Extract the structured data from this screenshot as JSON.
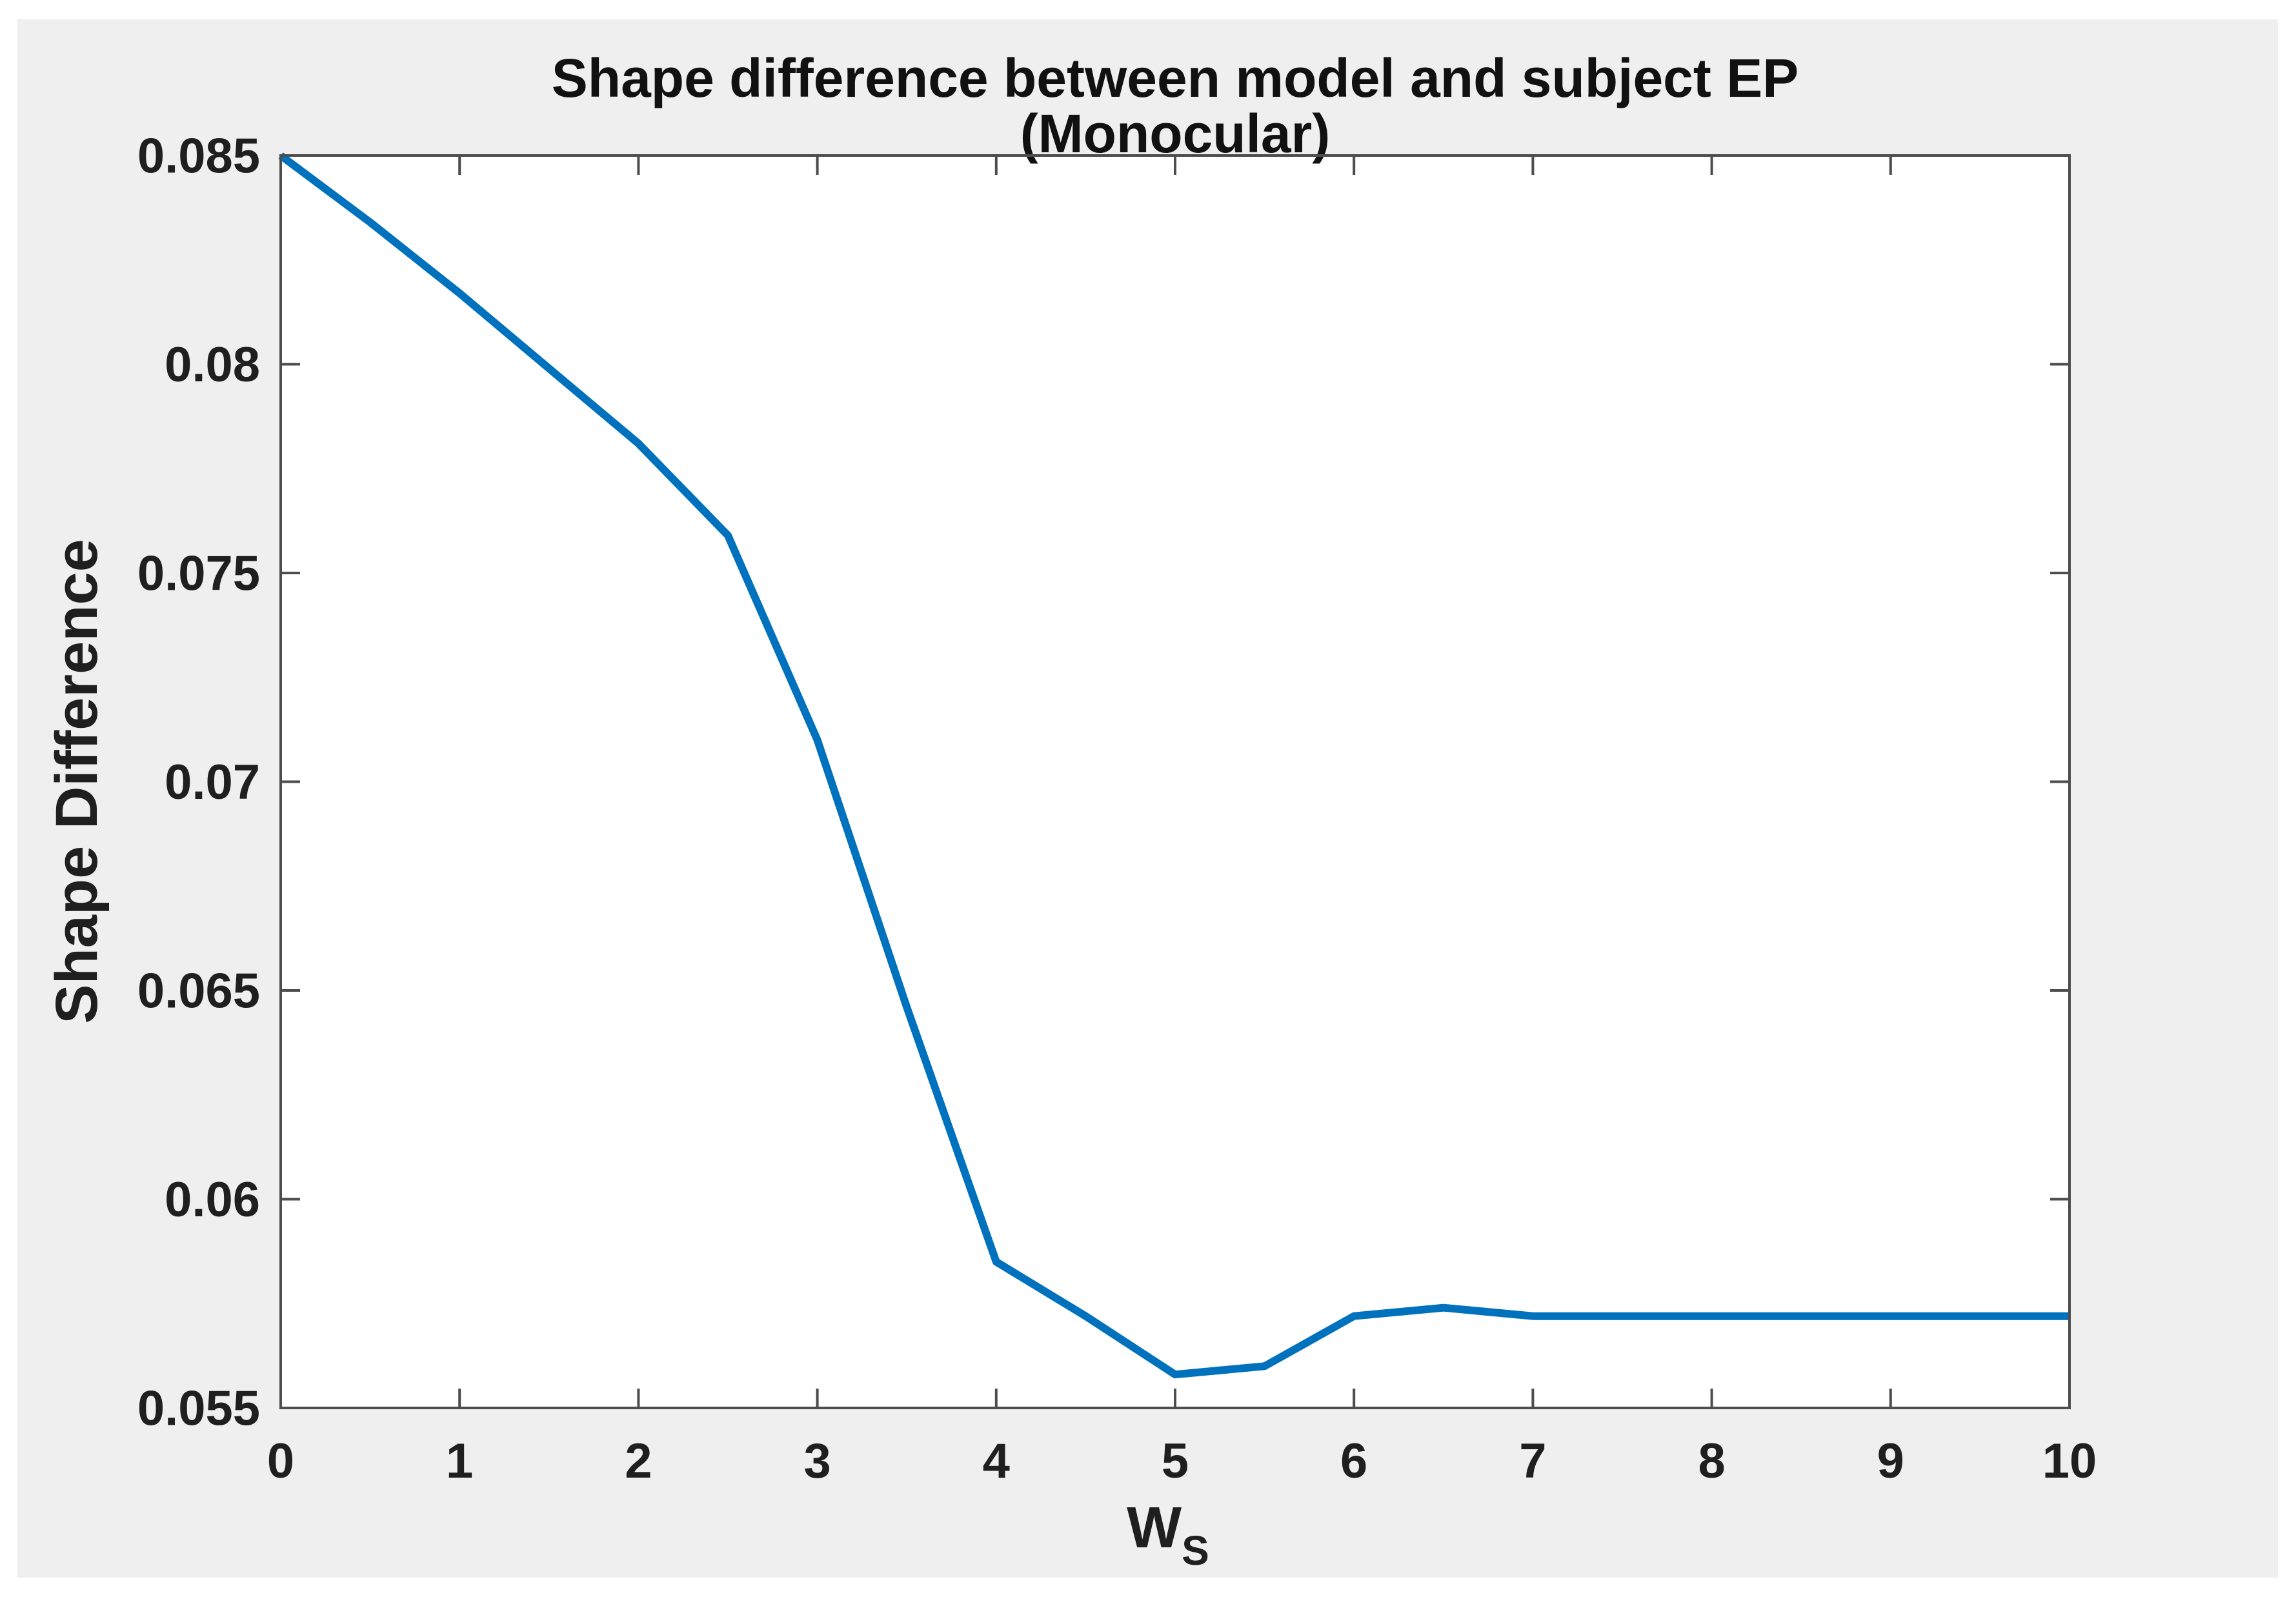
{
  "figure": {
    "title_line1": "Shape difference between model and subject EP",
    "title_line2": "(Monocular)",
    "background_color": "#efefef",
    "plot_background_color": "#ffffff",
    "axis_color": "#4d4d4d"
  },
  "chart_data": {
    "type": "line",
    "title": "Shape difference between model and subject EP (Monocular)",
    "xlabel_base": "W",
    "xlabel_subscript": "S",
    "ylabel": "Shape Difference",
    "xlim": [
      0,
      10
    ],
    "ylim": [
      0.055,
      0.085
    ],
    "grid": false,
    "legend_position": "none",
    "line_color": "#0072BD",
    "line_width": 12,
    "x_ticks": [
      0,
      1,
      2,
      3,
      4,
      5,
      6,
      7,
      8,
      9,
      10
    ],
    "x_tick_labels": [
      "0",
      "1",
      "2",
      "3",
      "4",
      "5",
      "6",
      "7",
      "8",
      "9",
      "10"
    ],
    "y_ticks": [
      0.055,
      0.06,
      0.065,
      0.07,
      0.075,
      0.08,
      0.085
    ],
    "y_tick_labels": [
      "0.055",
      "0.06",
      "0.065",
      "0.07",
      "0.075",
      "0.08",
      "0.085"
    ],
    "x": [
      0,
      0.5,
      1,
      1.5,
      2,
      2.5,
      3,
      3.5,
      4,
      4.5,
      5,
      5.5,
      6,
      6.5,
      7,
      7.5,
      8,
      8.5,
      9,
      9.5,
      10
    ],
    "y": [
      0.085,
      0.0834,
      0.0817,
      0.0799,
      0.0781,
      0.0759,
      0.071,
      0.0646,
      0.0585,
      0.0572,
      0.0558,
      0.056,
      0.0572,
      0.0574,
      0.0572,
      0.0572,
      0.0572,
      0.0572,
      0.0572,
      0.0572,
      0.0572
    ]
  }
}
